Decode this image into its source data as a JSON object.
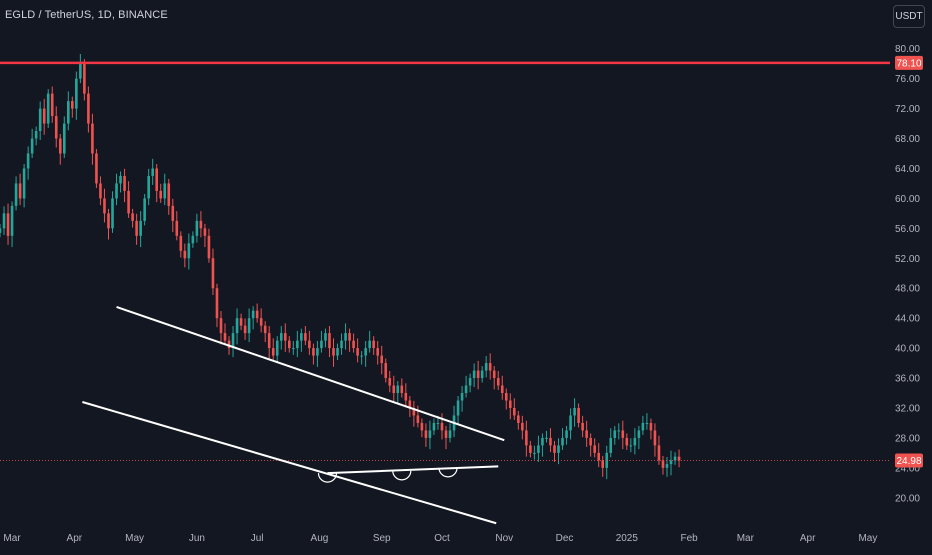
{
  "header": {
    "symbol_title": "EGLD / TetherUS, 1D, BINANCE",
    "currency_button": "USDT"
  },
  "colors": {
    "background": "#131722",
    "up_candle": "#26a69a",
    "down_candle": "#ef5350",
    "resistance_line": "#f23645",
    "trendline": "#ffffff",
    "axis_text": "#b2b5be",
    "last_price_line": "#ef5350"
  },
  "chart_data": {
    "type": "candlestick",
    "y_axis": {
      "ticks": [
        "80.00",
        "76.00",
        "72.00",
        "68.00",
        "64.00",
        "60.00",
        "56.00",
        "52.00",
        "48.00",
        "44.00",
        "40.00",
        "36.00",
        "32.00",
        "28.00",
        "24.00",
        "20.00"
      ],
      "ylim": [
        16.5,
        82.5
      ]
    },
    "x_axis": {
      "ticks": [
        "Mar",
        "Apr",
        "May",
        "Jun",
        "Jul",
        "Aug",
        "Sep",
        "Oct",
        "Nov",
        "Dec",
        "2025",
        "Feb",
        "Mar",
        "Apr",
        "May"
      ],
      "tick_dates": [
        "2024-03-01",
        "2024-04-01",
        "2024-05-01",
        "2024-06-01",
        "2024-07-01",
        "2024-08-01",
        "2024-09-01",
        "2024-10-01",
        "2024-11-01",
        "2024-12-01",
        "2025-01-01",
        "2025-02-01",
        "2025-03-01",
        "2025-04-01",
        "2025-05-01"
      ],
      "range": [
        "2024-02-24",
        "2025-05-12"
      ]
    },
    "horizontal_line": {
      "price": 78.1,
      "label": "78.10"
    },
    "last_price": {
      "price": 24.98,
      "label": "24.98"
    },
    "channel": {
      "upper": [
        {
          "date": "2024-04-22",
          "price": 45.5
        },
        {
          "date": "2024-11-01",
          "price": 27.7
        }
      ],
      "lower": [
        {
          "date": "2024-04-05",
          "price": 32.8
        },
        {
          "date": "2024-10-28",
          "price": 16.6
        }
      ],
      "support": [
        {
          "date": "2024-08-05",
          "price": 23.3
        },
        {
          "date": "2024-10-29",
          "price": 24.2
        }
      ]
    },
    "arcs": [
      {
        "date": "2024-08-05",
        "price": 23.3
      },
      {
        "date": "2024-09-11",
        "price": 23.6
      },
      {
        "date": "2024-10-04",
        "price": 24.0
      }
    ],
    "series_start": "2024-02-24",
    "closes": [
      56,
      58,
      55,
      59,
      62,
      60,
      64,
      66,
      68,
      69,
      72,
      70,
      74,
      71,
      68,
      66,
      70,
      73,
      72,
      76,
      78,
      74,
      70,
      66,
      62,
      60,
      58,
      56,
      60,
      62,
      63,
      61,
      58,
      57,
      55,
      57,
      60,
      63,
      64,
      61,
      60,
      62,
      59,
      57,
      55,
      53,
      52,
      54,
      55,
      57,
      56,
      55,
      52,
      48,
      44,
      42,
      41,
      40,
      42,
      44,
      43,
      42,
      44,
      45,
      44,
      43,
      42,
      40,
      39,
      41,
      42,
      41,
      40,
      40,
      41,
      42,
      41,
      40,
      39,
      40,
      41,
      42,
      40,
      39,
      40,
      41,
      42,
      41,
      40,
      39,
      39,
      40,
      41,
      40,
      39,
      38,
      36,
      35,
      34,
      35,
      34,
      33,
      32,
      31,
      30,
      29,
      28,
      29,
      30,
      30,
      29,
      28,
      29,
      31,
      33,
      34,
      35,
      36,
      37,
      36,
      37,
      38,
      37,
      36,
      35,
      34,
      33,
      32,
      31,
      30,
      29,
      27,
      26,
      26,
      27,
      28,
      28,
      27,
      26,
      27,
      28,
      29,
      31,
      32,
      30,
      29,
      28,
      27,
      26,
      25,
      24,
      26,
      28,
      29,
      29,
      28,
      27,
      27,
      28,
      29,
      30,
      30,
      29,
      27,
      25,
      24,
      24.5,
      25,
      25.5,
      24.98
    ]
  }
}
